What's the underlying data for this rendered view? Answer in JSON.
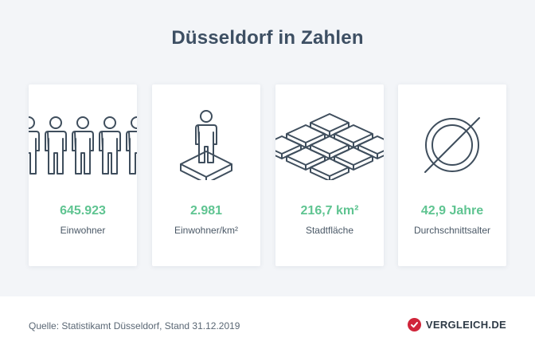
{
  "title": "Düsseldorf in Zahlen",
  "cards": [
    {
      "icon": "people-row-icon",
      "value": "645.923",
      "label": "Einwohner"
    },
    {
      "icon": "person-on-tile-icon",
      "value": "2.981",
      "label": "Einwohner/km²"
    },
    {
      "icon": "area-tiles-icon",
      "value": "216,7 km²",
      "label": "Stadtfläche"
    },
    {
      "icon": "average-symbol-icon",
      "value": "42,9 Jahre",
      "label": "Durchschnittsalter"
    }
  ],
  "footer": {
    "source": "Quelle: Statistikamt Düsseldorf, Stand 31.12.2019",
    "brand": "VERGLEICH.DE"
  },
  "colors": {
    "accent_value": "#5fc491",
    "title": "#3d4f63",
    "icon_stroke": "#3f4e5d",
    "brand_red": "#d0253a"
  }
}
